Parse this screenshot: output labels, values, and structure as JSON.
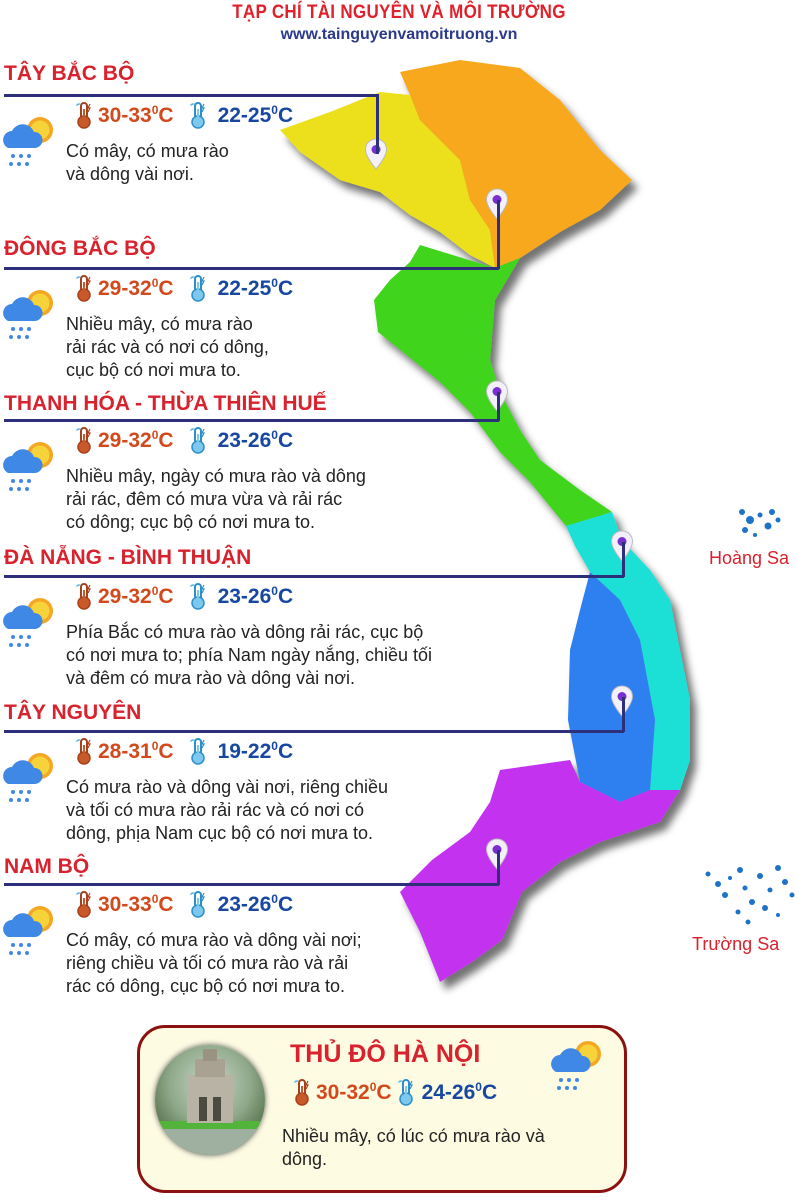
{
  "header": {
    "title": "TẠP CHÍ TÀI NGUYÊN VÀ MÔI TRƯỜNG",
    "url": "www.tainguyenvamoitruong.vn"
  },
  "unit": "C",
  "degree": "0",
  "regions": [
    {
      "name": "TÂY BẮC BỘ",
      "high": "30-33",
      "low": "22-25",
      "desc": [
        "Có mây, có mưa rào",
        "và dông vài nơi."
      ],
      "map_color": "#ece01a"
    },
    {
      "name": "ĐÔNG BẮC BỘ",
      "high": "29-32",
      "low": "22-25",
      "desc": [
        "Nhiều mây, có mưa rào",
        "rải rác và có nơi có dông,",
        "cục bộ có nơi mưa to."
      ],
      "map_color": "#f7a81b"
    },
    {
      "name": "THANH HÓA - THỪA THIÊN HUẾ",
      "high": "29-32",
      "low": "23-26",
      "desc": [
        "Nhiều mây, ngày có mưa rào và dông",
        "rải rác, đêm có mưa vừa và rải rác",
        "có dông; cục bộ có nơi mưa to."
      ],
      "map_color": "#3fd41c"
    },
    {
      "name": "ĐÀ NẴNG - BÌNH THUẬN",
      "high": "29-32",
      "low": "23-26",
      "desc": [
        "Phía Bắc có mưa rào và dông rải rác, cục bộ",
        "có nơi mưa to; phía Nam ngày nắng, chiều tối",
        "và đêm có mưa rào và dông vài nơi."
      ],
      "map_color": "#1fe0d6"
    },
    {
      "name": "TÂY NGUYÊN",
      "high": "28-31",
      "low": "19-22",
      "desc": [
        "Có mưa rào và dông vài nơi, riêng chiều",
        "và tối có mưa rào rải rác và có nơi có",
        "dông, phịa Nam cục bộ có nơi mưa to."
      ],
      "map_color": "#2f7ff0"
    },
    {
      "name": "NAM BỘ",
      "high": "30-33",
      "low": "23-26",
      "desc": [
        "Có mây, có mưa rào và dông vài nơi;",
        "riêng chiều và tối có mưa rào và rải",
        "rác có dông, cục bộ có nơi mưa to."
      ],
      "map_color": "#c333ef"
    }
  ],
  "islands": {
    "paracel": "Hoàng Sa",
    "spratly": "Trường Sa"
  },
  "capital": {
    "name": "THỦ ĐÔ HÀ NỘI",
    "high": "30-32",
    "low": "24-26",
    "desc": [
      "Nhiều mây, có lúc có mưa rào và",
      "dông."
    ]
  },
  "colors": {
    "title_red": "#d8222e",
    "line_navy": "#2e2f7a",
    "hot": "#d2491c",
    "cold": "#1747a0"
  },
  "icons": [
    "cloud-sun-rain-icon",
    "thermometer-hot-icon",
    "thermometer-cold-icon",
    "map-pin-icon",
    "hoan-kiem-turtle-tower-photo"
  ]
}
